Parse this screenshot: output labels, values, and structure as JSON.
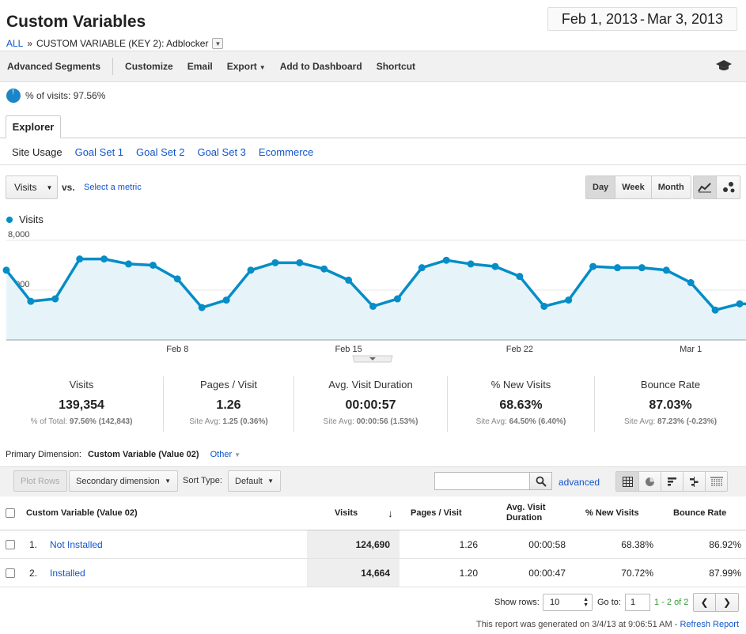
{
  "header": {
    "title": "Custom Variables",
    "breadcrumb_all": "ALL",
    "breadcrumb_sep": "»",
    "breadcrumb_current": "CUSTOM VARIABLE (KEY 2): Adblocker",
    "date_start": "Feb 1, 2013",
    "date_sep": "-",
    "date_end": "Mar 3, 2013"
  },
  "toolbar": {
    "advanced_segments": "Advanced Segments",
    "customize": "Customize",
    "email": "Email",
    "export": "Export",
    "add_to_dashboard": "Add to Dashboard",
    "shortcut": "Shortcut",
    "help_icon": "graduation-cap-icon"
  },
  "segment": {
    "pct_label": "% of visits: 97.56%",
    "pct_value": 97.56
  },
  "tabs": {
    "explorer": "Explorer",
    "sub": [
      "Site Usage",
      "Goal Set 1",
      "Goal Set 2",
      "Goal Set 3",
      "Ecommerce"
    ]
  },
  "chart_controls": {
    "metric": "Visits",
    "vs": "vs.",
    "select_metric": "Select a metric",
    "periods": [
      "Day",
      "Week",
      "Month"
    ],
    "active_period": "Day"
  },
  "chart_data": {
    "type": "area",
    "series": [
      {
        "name": "Visits",
        "color": "#058dc7",
        "values": [
          5600,
          3100,
          3300,
          6500,
          6500,
          6100,
          6000,
          4900,
          2600,
          3200,
          5600,
          6200,
          6200,
          5700,
          4800,
          2700,
          3300,
          5800,
          6400,
          6100,
          5900,
          5100,
          2700,
          3200,
          5900,
          5800,
          5800,
          5600,
          4600,
          2400,
          2900
        ]
      }
    ],
    "x": [
      "Feb 1",
      "Feb 2",
      "Feb 3",
      "Feb 4",
      "Feb 5",
      "Feb 6",
      "Feb 7",
      "Feb 8",
      "Feb 9",
      "Feb 10",
      "Feb 11",
      "Feb 12",
      "Feb 13",
      "Feb 14",
      "Feb 15",
      "Feb 16",
      "Feb 17",
      "Feb 18",
      "Feb 19",
      "Feb 20",
      "Feb 21",
      "Feb 22",
      "Feb 23",
      "Feb 24",
      "Feb 25",
      "Feb 26",
      "Feb 27",
      "Feb 28",
      "Mar 1",
      "Mar 2",
      "Mar 3"
    ],
    "x_tick_labels": [
      "Feb 8",
      "Feb 15",
      "Feb 22",
      "Mar 1"
    ],
    "y_tick_labels": [
      "8,000",
      "4,000"
    ],
    "ylim": [
      0,
      8000
    ],
    "grid": true,
    "legend": "top-left"
  },
  "scorecards": [
    {
      "label": "Visits",
      "value": "139,354",
      "sub_prefix": "% of Total:",
      "sub_value": "97.56% (142,843)"
    },
    {
      "label": "Pages / Visit",
      "value": "1.26",
      "sub_prefix": "Site Avg:",
      "sub_value": "1.25 (0.36%)"
    },
    {
      "label": "Avg. Visit Duration",
      "value": "00:00:57",
      "sub_prefix": "Site Avg:",
      "sub_value": "00:00:56 (1.53%)"
    },
    {
      "label": "% New Visits",
      "value": "68.63%",
      "sub_prefix": "Site Avg:",
      "sub_value": "64.50% (6.40%)"
    },
    {
      "label": "Bounce Rate",
      "value": "87.03%",
      "sub_prefix": "Site Avg:",
      "sub_value": "87.23% (-0.23%)"
    }
  ],
  "primary_dimension": {
    "label": "Primary Dimension:",
    "current": "Custom Variable (Value 02)",
    "other": "Other"
  },
  "table_controls": {
    "plot_rows": "Plot Rows",
    "secondary_dimension": "Secondary dimension",
    "sort_type_label": "Sort Type:",
    "sort_type": "Default",
    "search_value": "",
    "advanced": "advanced"
  },
  "table": {
    "columns": [
      "Custom Variable (Value 02)",
      "Visits",
      "Pages / Visit",
      "Avg. Visit Duration",
      "% New Visits",
      "Bounce Rate"
    ],
    "rows": [
      {
        "index": "1.",
        "name": "Not Installed",
        "visits": "124,690",
        "pages": "1.26",
        "duration": "00:00:58",
        "new": "68.38%",
        "bounce": "86.92%"
      },
      {
        "index": "2.",
        "name": "Installed",
        "visits": "14,664",
        "pages": "1.20",
        "duration": "00:00:47",
        "new": "70.72%",
        "bounce": "87.99%"
      }
    ]
  },
  "pagination": {
    "show_rows_label": "Show rows:",
    "show_rows": "10",
    "goto_label": "Go to:",
    "goto_value": "1",
    "range": "1 - 2 of 2"
  },
  "footer": {
    "text": "This report was generated on 3/4/13 at 9:06:51 AM -",
    "refresh": "Refresh Report"
  }
}
